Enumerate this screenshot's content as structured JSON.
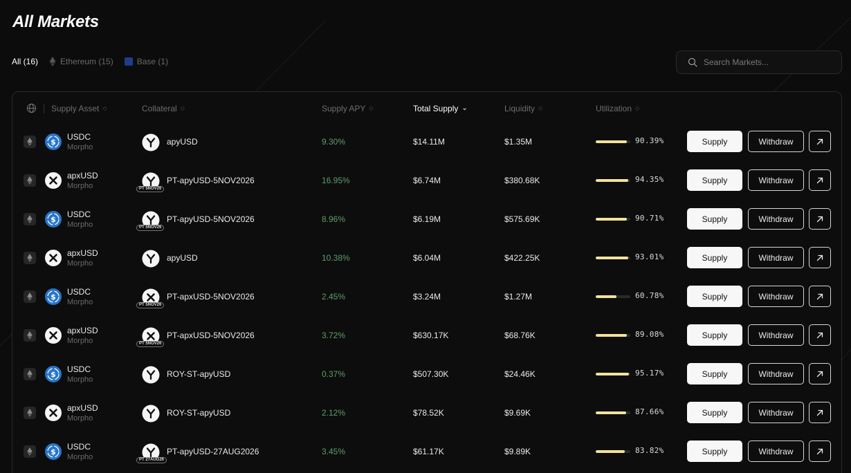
{
  "page": {
    "title": "All Markets"
  },
  "filters": [
    {
      "label": "All (16)",
      "active": true,
      "icon": ""
    },
    {
      "label": "Ethereum (15)",
      "active": false,
      "icon": "ethereum-icon"
    },
    {
      "label": "Base (1)",
      "active": false,
      "icon": "base-icon"
    }
  ],
  "search": {
    "placeholder": "Search Markets..."
  },
  "columns": {
    "supply_asset": "Supply Asset",
    "collateral": "Collateral",
    "supply_apy": "Supply APY",
    "total_supply": "Total Supply",
    "liquidity": "Liquidity",
    "utilization": "Utilization"
  },
  "actions": {
    "supply": "Supply",
    "withdraw": "Withdraw"
  },
  "colors": {
    "accent": "#f3e39a",
    "apy": "#5e9d6a",
    "usdc": "#2775ca",
    "background": "#0c0c0c"
  },
  "rows": [
    {
      "asset": "USDC",
      "asset_icon": "usdc-icon",
      "protocol": "Morpho",
      "collateral": "apyUSD",
      "coll_icon": "y",
      "pt_tag": "",
      "apy": "9.30%",
      "total_supply": "$14.11M",
      "liquidity": "$1.35M",
      "utilization": "90.39%",
      "util_value": 90.39
    },
    {
      "asset": "apxUSD",
      "asset_icon": "apx-icon",
      "protocol": "Morpho",
      "collateral": "PT-apyUSD-5NOV2026",
      "coll_icon": "y",
      "pt_tag": "PT 5NOV26",
      "apy": "16.95%",
      "total_supply": "$6.74M",
      "liquidity": "$380.68K",
      "utilization": "94.35%",
      "util_value": 94.35
    },
    {
      "asset": "USDC",
      "asset_icon": "usdc-icon",
      "protocol": "Morpho",
      "collateral": "PT-apyUSD-5NOV2026",
      "coll_icon": "y",
      "pt_tag": "PT 5NOV26",
      "apy": "8.96%",
      "total_supply": "$6.19M",
      "liquidity": "$575.69K",
      "utilization": "90.71%",
      "util_value": 90.71
    },
    {
      "asset": "apxUSD",
      "asset_icon": "apx-icon",
      "protocol": "Morpho",
      "collateral": "apyUSD",
      "coll_icon": "y",
      "pt_tag": "",
      "apy": "10.38%",
      "total_supply": "$6.04M",
      "liquidity": "$422.25K",
      "utilization": "93.01%",
      "util_value": 93.01
    },
    {
      "asset": "USDC",
      "asset_icon": "usdc-icon",
      "protocol": "Morpho",
      "collateral": "PT-apxUSD-5NOV2026",
      "coll_icon": "x",
      "pt_tag": "PT 5NOV26",
      "apy": "2.45%",
      "total_supply": "$3.24M",
      "liquidity": "$1.27M",
      "utilization": "60.78%",
      "util_value": 60.78
    },
    {
      "asset": "apxUSD",
      "asset_icon": "apx-icon",
      "protocol": "Morpho",
      "collateral": "PT-apxUSD-5NOV2026",
      "coll_icon": "x",
      "pt_tag": "PT 5NOV26",
      "apy": "3.72%",
      "total_supply": "$630.17K",
      "liquidity": "$68.76K",
      "utilization": "89.08%",
      "util_value": 89.08
    },
    {
      "asset": "USDC",
      "asset_icon": "usdc-icon",
      "protocol": "Morpho",
      "collateral": "ROY-ST-apyUSD",
      "coll_icon": "y",
      "pt_tag": "",
      "apy": "0.37%",
      "total_supply": "$507.30K",
      "liquidity": "$24.46K",
      "utilization": "95.17%",
      "util_value": 95.17
    },
    {
      "asset": "apxUSD",
      "asset_icon": "apx-icon",
      "protocol": "Morpho",
      "collateral": "ROY-ST-apyUSD",
      "coll_icon": "y",
      "pt_tag": "",
      "apy": "2.12%",
      "total_supply": "$78.52K",
      "liquidity": "$9.69K",
      "utilization": "87.66%",
      "util_value": 87.66
    },
    {
      "asset": "USDC",
      "asset_icon": "usdc-icon",
      "protocol": "Morpho",
      "collateral": "PT-apyUSD-27AUG2026",
      "coll_icon": "y",
      "pt_tag": "PT 27AUG26",
      "apy": "3.45%",
      "total_supply": "$61.17K",
      "liquidity": "$9.89K",
      "utilization": "83.82%",
      "util_value": 83.82
    }
  ]
}
